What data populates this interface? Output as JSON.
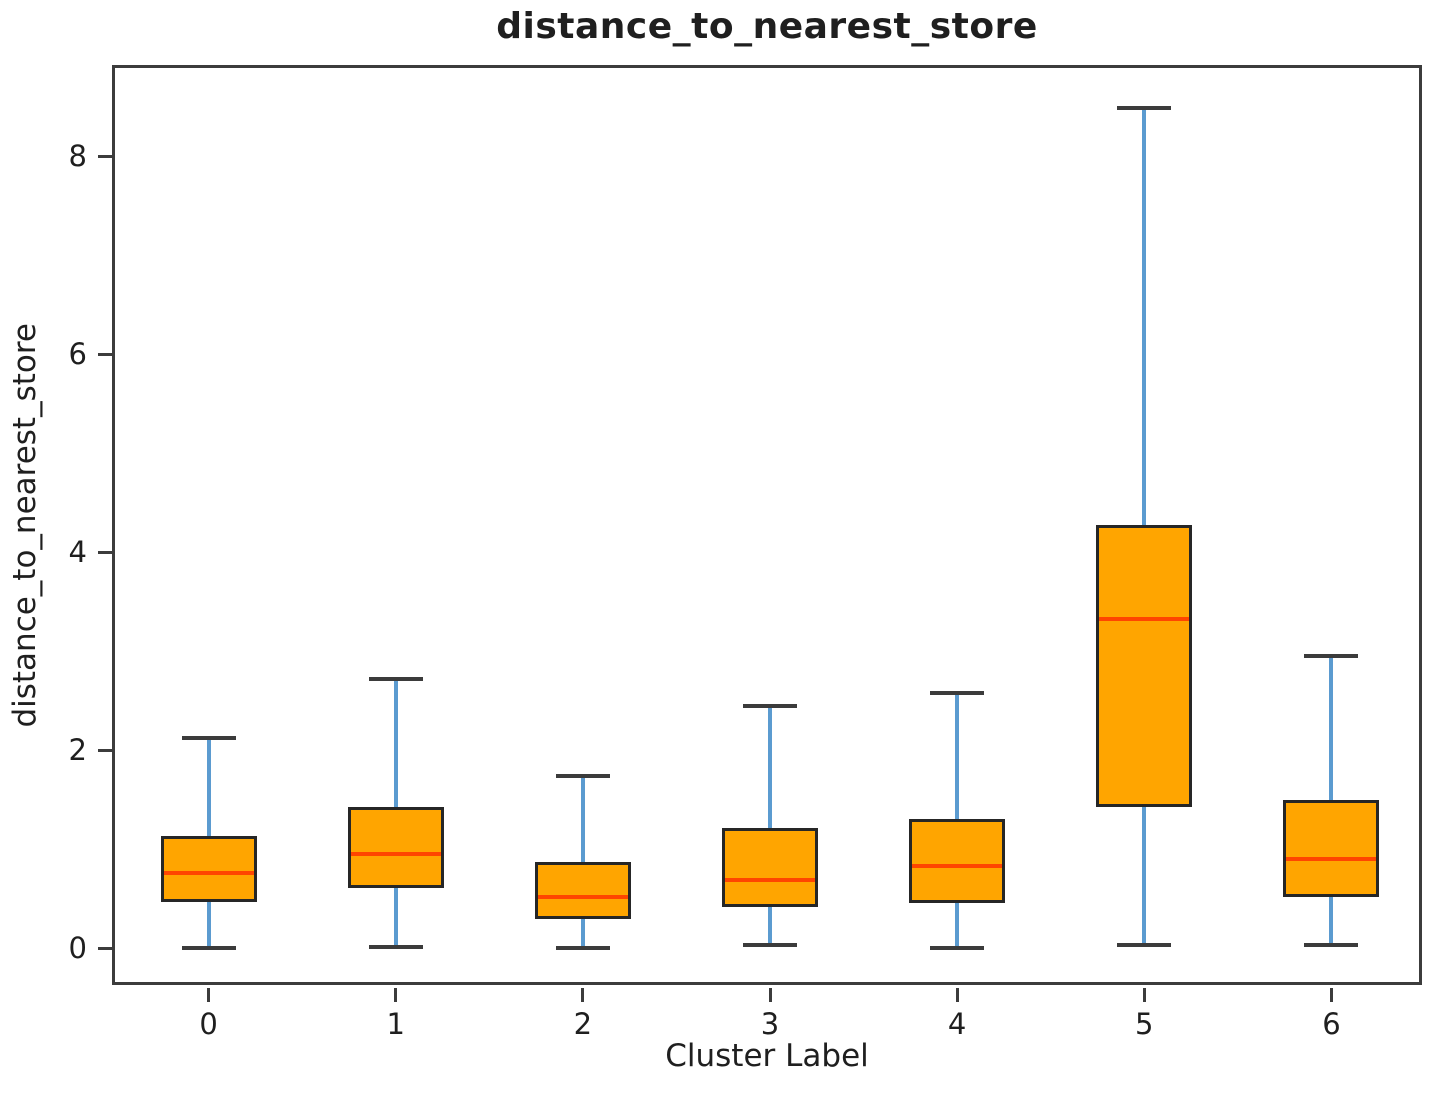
{
  "chart": {
    "title": "distance_to_nearest_store",
    "xlabel": "Cluster Label",
    "ylabel": "distance_to_nearest_store"
  },
  "chart_data": {
    "type": "boxplot",
    "title": "distance_to_nearest_store",
    "xlabel": "Cluster Label",
    "ylabel": "distance_to_nearest_store",
    "categories": [
      "0",
      "1",
      "2",
      "3",
      "4",
      "5",
      "6"
    ],
    "series": [
      {
        "label": "0",
        "whislo": 0.0,
        "q1": 0.47,
        "med": 0.76,
        "q3": 1.13,
        "whishi": 2.12
      },
      {
        "label": "1",
        "whislo": 0.01,
        "q1": 0.61,
        "med": 0.95,
        "q3": 1.43,
        "whishi": 2.72
      },
      {
        "label": "2",
        "whislo": 0.0,
        "q1": 0.3,
        "med": 0.52,
        "q3": 0.87,
        "whishi": 1.74
      },
      {
        "label": "3",
        "whislo": 0.03,
        "q1": 0.42,
        "med": 0.69,
        "q3": 1.22,
        "whishi": 2.45
      },
      {
        "label": "4",
        "whislo": 0.0,
        "q1": 0.46,
        "med": 0.83,
        "q3": 1.31,
        "whishi": 2.58
      },
      {
        "label": "5",
        "whislo": 0.03,
        "q1": 1.43,
        "med": 3.33,
        "q3": 4.28,
        "whishi": 8.49
      },
      {
        "label": "6",
        "whislo": 0.03,
        "q1": 0.52,
        "med": 0.9,
        "q3": 1.5,
        "whishi": 2.95
      }
    ],
    "yticks": [
      0,
      2,
      4,
      6,
      8
    ],
    "ylim": [
      -0.4,
      8.89
    ],
    "grid": false,
    "legend": "none",
    "colors": {
      "box_fill": "#FFA500",
      "box_edge": "#262626",
      "median": "#FF4500",
      "whisker": "#5B9BD0",
      "cap": "#3B3B3B",
      "spine": "#3C3C3C",
      "text": "#1F1F1F"
    }
  }
}
